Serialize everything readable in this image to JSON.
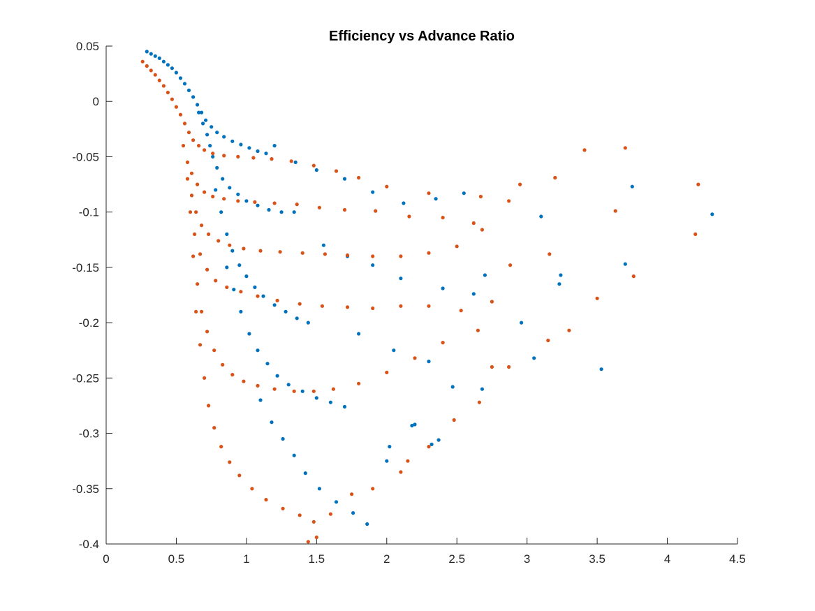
{
  "chart_data": {
    "type": "scatter",
    "title": "Efficiency vs Advance Ratio",
    "xlabel": "",
    "ylabel": "",
    "xlim": [
      0,
      4.5
    ],
    "ylim": [
      -0.4,
      0.05
    ],
    "xticks": [
      0,
      0.5,
      1,
      1.5,
      2,
      2.5,
      3,
      3.5,
      4,
      4.5
    ],
    "xtick_labels": [
      "0",
      "0.5",
      "1",
      "1.5",
      "2",
      "2.5",
      "3",
      "3.5",
      "4",
      "4.5"
    ],
    "yticks": [
      0.05,
      0,
      -0.05,
      -0.1,
      -0.15,
      -0.2,
      -0.25,
      -0.3,
      -0.35,
      -0.4
    ],
    "ytick_labels": [
      "0.05",
      "0",
      "-0.05",
      "-0.1",
      "-0.15",
      "-0.2",
      "-0.25",
      "-0.3",
      "-0.35",
      "-0.4"
    ],
    "grid": false,
    "legend": "none",
    "box": "bottom-left axes only",
    "series": [
      {
        "color": "#0072BD",
        "points": [
          [
            0.29,
            0.045
          ],
          [
            0.32,
            0.043
          ],
          [
            0.35,
            0.041
          ],
          [
            0.38,
            0.039
          ],
          [
            0.41,
            0.036
          ],
          [
            0.44,
            0.033
          ],
          [
            0.47,
            0.03
          ],
          [
            0.5,
            0.026
          ],
          [
            0.53,
            0.021
          ],
          [
            0.56,
            0.016
          ],
          [
            0.59,
            0.01
          ],
          [
            0.62,
            0.004
          ],
          [
            0.65,
            -0.003
          ],
          [
            0.68,
            -0.01
          ],
          [
            0.71,
            -0.017
          ],
          [
            0.75,
            -0.023
          ],
          [
            0.79,
            -0.028
          ],
          [
            0.84,
            -0.032
          ],
          [
            0.9,
            -0.036
          ],
          [
            0.96,
            -0.039
          ],
          [
            1.02,
            -0.042
          ],
          [
            1.08,
            -0.045
          ],
          [
            1.14,
            -0.047
          ],
          [
            0.66,
            -0.01
          ],
          [
            0.69,
            -0.02
          ],
          [
            0.72,
            -0.03
          ],
          [
            0.74,
            -0.04
          ],
          [
            0.76,
            -0.05
          ],
          [
            0.79,
            -0.06
          ],
          [
            0.83,
            -0.07
          ],
          [
            0.88,
            -0.078
          ],
          [
            0.94,
            -0.084
          ],
          [
            1.0,
            -0.09
          ],
          [
            1.08,
            -0.094
          ],
          [
            1.16,
            -0.098
          ],
          [
            1.25,
            -0.1
          ],
          [
            1.34,
            -0.1
          ],
          [
            0.78,
            -0.08
          ],
          [
            0.82,
            -0.1
          ],
          [
            0.86,
            -0.12
          ],
          [
            0.9,
            -0.135
          ],
          [
            0.95,
            -0.148
          ],
          [
            1.0,
            -0.158
          ],
          [
            1.06,
            -0.168
          ],
          [
            1.12,
            -0.176
          ],
          [
            1.2,
            -0.184
          ],
          [
            1.28,
            -0.19
          ],
          [
            1.36,
            -0.196
          ],
          [
            1.44,
            -0.2
          ],
          [
            0.86,
            -0.15
          ],
          [
            0.91,
            -0.17
          ],
          [
            0.96,
            -0.19
          ],
          [
            1.02,
            -0.21
          ],
          [
            1.08,
            -0.225
          ],
          [
            1.15,
            -0.237
          ],
          [
            1.22,
            -0.248
          ],
          [
            1.3,
            -0.256
          ],
          [
            1.4,
            -0.262
          ],
          [
            1.5,
            -0.268
          ],
          [
            1.6,
            -0.272
          ],
          [
            1.7,
            -0.276
          ],
          [
            1.1,
            -0.27
          ],
          [
            1.18,
            -0.29
          ],
          [
            1.26,
            -0.305
          ],
          [
            1.34,
            -0.32
          ],
          [
            1.42,
            -0.336
          ],
          [
            1.52,
            -0.35
          ],
          [
            1.64,
            -0.362
          ],
          [
            1.76,
            -0.372
          ],
          [
            1.86,
            -0.382
          ],
          [
            1.2,
            -0.04
          ],
          [
            1.35,
            -0.055
          ],
          [
            1.5,
            -0.062
          ],
          [
            1.7,
            -0.07
          ],
          [
            1.9,
            -0.082
          ],
          [
            2.12,
            -0.092
          ],
          [
            2.35,
            -0.088
          ],
          [
            2.55,
            -0.083
          ],
          [
            3.1,
            -0.104
          ],
          [
            3.75,
            -0.077
          ],
          [
            4.32,
            -0.102
          ],
          [
            1.55,
            -0.13
          ],
          [
            1.72,
            -0.14
          ],
          [
            1.9,
            -0.148
          ],
          [
            2.1,
            -0.16
          ],
          [
            2.4,
            -0.169
          ],
          [
            2.62,
            -0.174
          ],
          [
            2.7,
            -0.157
          ],
          [
            3.24,
            -0.157
          ],
          [
            3.23,
            -0.165
          ],
          [
            3.7,
            -0.147
          ],
          [
            1.8,
            -0.21
          ],
          [
            2.05,
            -0.225
          ],
          [
            2.3,
            -0.235
          ],
          [
            2.47,
            -0.258
          ],
          [
            2.68,
            -0.26
          ],
          [
            2.96,
            -0.2
          ],
          [
            3.05,
            -0.232
          ],
          [
            3.53,
            -0.242
          ],
          [
            2.02,
            -0.312
          ],
          [
            2.18,
            -0.293
          ],
          [
            2.32,
            -0.31
          ],
          [
            2.37,
            -0.306
          ],
          [
            2.2,
            -0.292
          ],
          [
            2.0,
            -0.325
          ]
        ]
      },
      {
        "color": "#D95319",
        "points": [
          [
            0.26,
            0.036
          ],
          [
            0.29,
            0.032
          ],
          [
            0.32,
            0.028
          ],
          [
            0.35,
            0.024
          ],
          [
            0.38,
            0.019
          ],
          [
            0.41,
            0.014
          ],
          [
            0.44,
            0.008
          ],
          [
            0.47,
            0.002
          ],
          [
            0.5,
            -0.005
          ],
          [
            0.53,
            -0.012
          ],
          [
            0.56,
            -0.02
          ],
          [
            0.59,
            -0.028
          ],
          [
            0.62,
            -0.035
          ],
          [
            0.66,
            -0.04
          ],
          [
            0.7,
            -0.044
          ],
          [
            0.76,
            -0.047
          ],
          [
            0.84,
            -0.049
          ],
          [
            0.94,
            -0.05
          ],
          [
            1.05,
            -0.051
          ],
          [
            1.18,
            -0.052
          ],
          [
            1.32,
            -0.054
          ],
          [
            1.48,
            -0.058
          ],
          [
            1.64,
            -0.063
          ],
          [
            1.8,
            -0.069
          ],
          [
            2.0,
            -0.077
          ],
          [
            2.3,
            -0.083
          ],
          [
            2.67,
            -0.086
          ],
          [
            2.95,
            -0.075
          ],
          [
            3.41,
            -0.044
          ],
          [
            3.7,
            -0.042
          ],
          [
            0.55,
            -0.04
          ],
          [
            0.58,
            -0.055
          ],
          [
            0.61,
            -0.065
          ],
          [
            0.65,
            -0.075
          ],
          [
            0.7,
            -0.082
          ],
          [
            0.76,
            -0.086
          ],
          [
            0.84,
            -0.088
          ],
          [
            0.94,
            -0.09
          ],
          [
            1.06,
            -0.091
          ],
          [
            1.2,
            -0.092
          ],
          [
            1.36,
            -0.093
          ],
          [
            1.52,
            -0.096
          ],
          [
            1.7,
            -0.098
          ],
          [
            1.92,
            -0.099
          ],
          [
            2.16,
            -0.104
          ],
          [
            2.4,
            -0.105
          ],
          [
            2.62,
            -0.11
          ],
          [
            2.87,
            -0.09
          ],
          [
            3.2,
            -0.069
          ],
          [
            4.22,
            -0.075
          ],
          [
            3.63,
            -0.099
          ],
          [
            4.2,
            -0.12
          ],
          [
            0.58,
            -0.07
          ],
          [
            0.61,
            -0.085
          ],
          [
            0.64,
            -0.1
          ],
          [
            0.68,
            -0.112
          ],
          [
            0.73,
            -0.12
          ],
          [
            0.8,
            -0.126
          ],
          [
            0.88,
            -0.13
          ],
          [
            0.98,
            -0.133
          ],
          [
            1.1,
            -0.135
          ],
          [
            1.24,
            -0.136
          ],
          [
            1.4,
            -0.137
          ],
          [
            1.56,
            -0.138
          ],
          [
            1.72,
            -0.139
          ],
          [
            1.9,
            -0.14
          ],
          [
            2.1,
            -0.14
          ],
          [
            2.3,
            -0.137
          ],
          [
            2.5,
            -0.131
          ],
          [
            2.68,
            -0.116
          ],
          [
            3.16,
            -0.138
          ],
          [
            0.6,
            -0.1
          ],
          [
            0.63,
            -0.12
          ],
          [
            0.67,
            -0.138
          ],
          [
            0.72,
            -0.152
          ],
          [
            0.78,
            -0.162
          ],
          [
            0.86,
            -0.168
          ],
          [
            0.96,
            -0.172
          ],
          [
            1.08,
            -0.176
          ],
          [
            1.22,
            -0.18
          ],
          [
            1.38,
            -0.183
          ],
          [
            1.54,
            -0.185
          ],
          [
            1.72,
            -0.186
          ],
          [
            1.9,
            -0.187
          ],
          [
            2.1,
            -0.185
          ],
          [
            2.3,
            -0.185
          ],
          [
            2.53,
            -0.189
          ],
          [
            2.75,
            -0.181
          ],
          [
            2.88,
            -0.148
          ],
          [
            3.76,
            -0.158
          ],
          [
            3.5,
            -0.178
          ],
          [
            0.62,
            -0.14
          ],
          [
            0.65,
            -0.165
          ],
          [
            0.68,
            -0.19
          ],
          [
            0.72,
            -0.208
          ],
          [
            0.77,
            -0.225
          ],
          [
            0.83,
            -0.238
          ],
          [
            0.9,
            -0.247
          ],
          [
            0.98,
            -0.253
          ],
          [
            1.08,
            -0.257
          ],
          [
            1.2,
            -0.26
          ],
          [
            1.34,
            -0.262
          ],
          [
            1.48,
            -0.262
          ],
          [
            1.62,
            -0.26
          ],
          [
            1.8,
            -0.255
          ],
          [
            2.0,
            -0.245
          ],
          [
            2.2,
            -0.232
          ],
          [
            2.4,
            -0.218
          ],
          [
            2.65,
            -0.207
          ],
          [
            2.75,
            -0.24
          ],
          [
            2.87,
            -0.24
          ],
          [
            3.3,
            -0.207
          ],
          [
            3.15,
            -0.216
          ],
          [
            0.64,
            -0.19
          ],
          [
            0.67,
            -0.22
          ],
          [
            0.7,
            -0.25
          ],
          [
            0.73,
            -0.275
          ],
          [
            0.77,
            -0.295
          ],
          [
            0.82,
            -0.312
          ],
          [
            0.88,
            -0.326
          ],
          [
            0.95,
            -0.338
          ],
          [
            1.04,
            -0.35
          ],
          [
            1.14,
            -0.36
          ],
          [
            1.26,
            -0.368
          ],
          [
            1.38,
            -0.374
          ],
          [
            1.48,
            -0.38
          ],
          [
            1.44,
            -0.398
          ],
          [
            1.5,
            -0.394
          ],
          [
            1.6,
            -0.373
          ],
          [
            1.75,
            -0.355
          ],
          [
            1.9,
            -0.35
          ],
          [
            2.1,
            -0.335
          ],
          [
            2.3,
            -0.312
          ],
          [
            2.48,
            -0.288
          ],
          [
            2.66,
            -0.272
          ],
          [
            2.15,
            -0.325
          ]
        ]
      }
    ]
  }
}
